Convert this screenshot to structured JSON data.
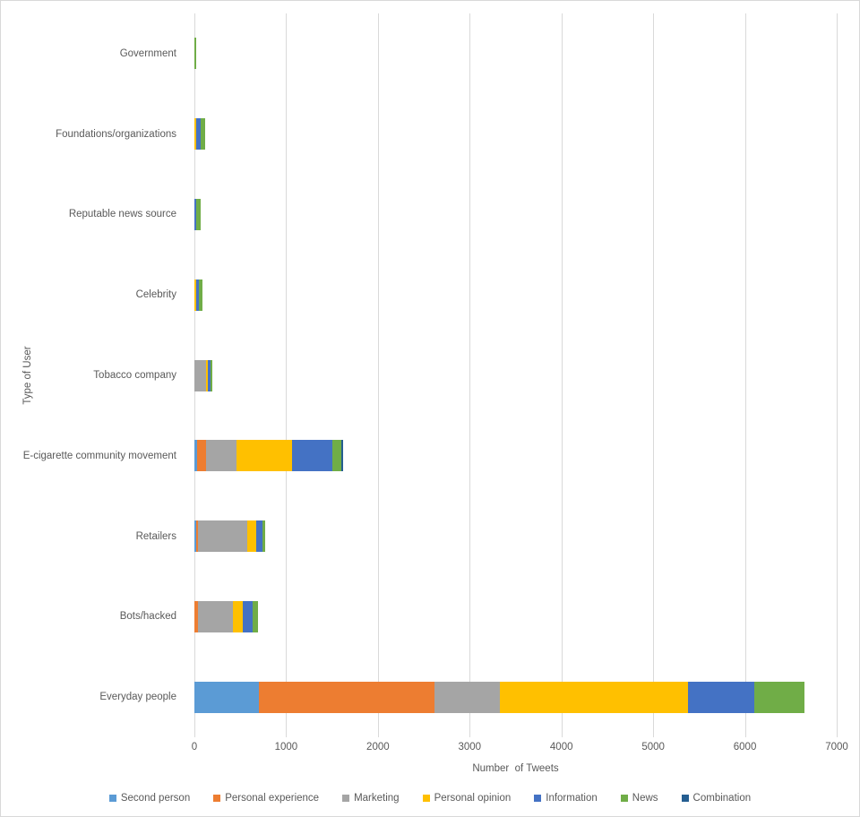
{
  "chart_data": {
    "type": "bar",
    "orientation": "horizontal",
    "stacked": true,
    "title": "",
    "xlabel": "Number  of Tweets",
    "ylabel": "Type of User",
    "xlim": [
      0,
      7000
    ],
    "x_ticks": [
      0,
      1000,
      2000,
      3000,
      4000,
      5000,
      6000,
      7000
    ],
    "grid": true,
    "legend_position": "bottom",
    "gridline_color": "#d9d9d9",
    "text_color": "#595959",
    "categories": [
      "Government",
      "Foundations/organizations",
      "Reputable news source",
      "Celebrity",
      "Tobacco company",
      "E-cigarette community movement",
      "Retailers",
      "Bots/hacked",
      "Everyday people"
    ],
    "series": [
      {
        "name": "Second person",
        "color": "#5B9BD5",
        "values": [
          0,
          0,
          0,
          0,
          0,
          25,
          15,
          0,
          700
        ]
      },
      {
        "name": "Personal experience",
        "color": "#ED7D31",
        "values": [
          0,
          0,
          0,
          0,
          0,
          100,
          25,
          35,
          1920
        ]
      },
      {
        "name": "Marketing",
        "color": "#A5A5A5",
        "values": [
          0,
          0,
          0,
          0,
          125,
          330,
          540,
          385,
          710
        ]
      },
      {
        "name": "Personal opinion",
        "color": "#FFC000",
        "values": [
          0,
          15,
          0,
          20,
          25,
          610,
          95,
          105,
          2045
        ]
      },
      {
        "name": "Information",
        "color": "#4472C4",
        "values": [
          0,
          50,
          20,
          25,
          25,
          435,
          70,
          105,
          730
        ]
      },
      {
        "name": "News",
        "color": "#70AD47",
        "values": [
          20,
          50,
          45,
          40,
          20,
          105,
          25,
          60,
          540
        ]
      },
      {
        "name": "Combination",
        "color": "#255E91",
        "values": [
          0,
          0,
          0,
          0,
          0,
          20,
          0,
          0,
          0
        ]
      }
    ]
  }
}
